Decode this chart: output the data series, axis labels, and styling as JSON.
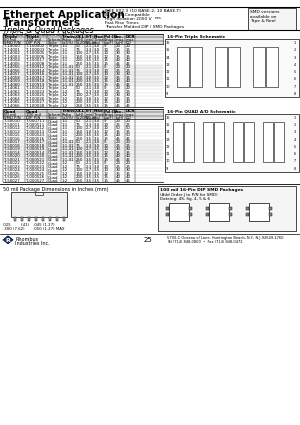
{
  "title_line1": "Ethernet Application",
  "title_line2": "Transformers",
  "title_line3": "Triple & Quad Packages",
  "specs_title": "IEEE 802.3 (10 BASE-2, 10 BASE-T)",
  "specs_line1": "& PCMIA-Compatible",
  "specs_line2": "High Isolation 2000 V",
  "specs_line2b": "rms",
  "specs_line3": "Fast Rise Times",
  "specs_line4": "Transfer Molded DIP / SMD Packages",
  "smd_box_lines": [
    "SMD versions",
    "available on",
    "Tape & Reel"
  ],
  "elec_specs_title": "Electrical Specifications at 25°C",
  "triple_headers": [
    [
      "Triple",
      "Triple",
      "",
      "Trans.",
      "OCL",
      "E-T",
      "Rise",
      "Pd (Sec.",
      "Iₗ",
      "DCR"
    ],
    [
      "50 mil",
      "100 mil",
      "Schem.",
      "Ratio",
      "(μH)",
      "min",
      "Time max.",
      "C",
      "max",
      "max"
    ],
    [
      "SMD P/N",
      "DIP P/N",
      "Style",
      "(±5%)",
      "(±20%)",
      "(V-μs)",
      "(ns)",
      "(μpF)",
      "(μH)",
      "(Ω)"
    ]
  ],
  "triple_rows": [
    [
      "T-14000",
      "T-100002",
      "Triple",
      "1:1",
      "50",
      "2.1",
      "3.0",
      "9",
      "20",
      "20"
    ],
    [
      "T-14001",
      "T-100003",
      "Triple",
      "1:1",
      "75",
      "2.3",
      "3.0",
      "10",
      "25",
      "25"
    ],
    [
      "T-14002",
      "T-100005",
      "Triple",
      "1:1",
      "100",
      "2.7",
      "3.5",
      "10",
      "30",
      "30"
    ],
    [
      "T-14003",
      "T-100006",
      "Triple",
      "1:1",
      "150",
      "3.0",
      "3.5",
      "12",
      "35",
      "35"
    ],
    [
      "T-14004",
      "T-100017",
      "Triple",
      "1:1",
      "200",
      "3.5",
      "3.5",
      "15",
      "40",
      "40"
    ],
    [
      "T-14005",
      "T-100008",
      "Triple",
      "1:1",
      "250",
      "3.5",
      "3.5",
      "15",
      "45",
      "45"
    ],
    [
      "T-14055",
      "T-100912",
      "Triple",
      "1:1.41",
      "50",
      "2.1",
      "3.0",
      "9",
      "20",
      "20"
    ],
    [
      "T-14056",
      "T-100914",
      "Triple",
      "1:1.41",
      "75",
      "2.3",
      "3.0",
      "10",
      "25",
      "25"
    ],
    [
      "T-14057",
      "T-100916",
      "Triple",
      "1:1.41",
      "100",
      "2.7",
      "3.5",
      "10",
      "30",
      "30"
    ],
    [
      "T-14058",
      "T-100917",
      "Triple",
      "1:1.41",
      "150",
      "3.0",
      "3.5",
      "12",
      "35",
      "35"
    ],
    [
      "T-14059",
      "T-100918",
      "Triple",
      "1:1.41",
      "200",
      "3.5",
      "3.5",
      "15",
      "40",
      "40"
    ],
    [
      "T-14060",
      "T-100919",
      "Triple",
      "1:1.41",
      "250",
      "3.5",
      "3.5",
      "15",
      "45",
      "45"
    ],
    [
      "T-14061",
      "T-100022",
      "Triple",
      "1:2",
      "50",
      "2.1",
      "3.0",
      "9",
      "20",
      "20"
    ],
    [
      "T-14062",
      "T-100023",
      "Triple",
      "1:2",
      "75",
      "2.3",
      "3.0",
      "10",
      "25",
      "25"
    ],
    [
      "T-14063",
      "T-100025",
      "Triple",
      "1:2",
      "100",
      "2.7",
      "3.5",
      "10",
      "30",
      "30"
    ],
    [
      "T-14064",
      "T-100026",
      "Triple",
      "1:2",
      "150",
      "3.0",
      "3.5",
      "12",
      "35",
      "35"
    ],
    [
      "T-14065",
      "T-100027",
      "Triple",
      "1:2",
      "200",
      "3.5",
      "3.5",
      "15",
      "40",
      "40"
    ],
    [
      "T-14066",
      "T-100028",
      "Triple",
      "1:2",
      "250",
      "3.5",
      "3.5",
      "15",
      "45",
      "45"
    ]
  ],
  "quad_headers": [
    [
      "Quad",
      "Quad",
      "",
      "Trans.",
      "OCL",
      "E-T",
      "Rise",
      "Pd (Sec.",
      "Iₗ",
      "DCR"
    ],
    [
      "50 mil",
      "100 mil",
      "Schem.",
      "Ratio",
      "(μH)",
      "min",
      "Time max.",
      "C",
      "max",
      "max"
    ],
    [
      "SMD P/N",
      "DIP P/N",
      "Style",
      "(±5%)",
      "(±20%)",
      "(V-μs)",
      "(ns)",
      "(μpF)",
      "(μH)",
      "(Ω)"
    ]
  ],
  "quad_rows": [
    [
      "T-50010",
      "T-000711",
      "Quad",
      "1:1",
      "50",
      "2.1",
      "3.0",
      "9",
      "20",
      "20"
    ],
    [
      "T-50011",
      "T-000511",
      "Quad",
      "1:1",
      "75",
      "2.3",
      "3.0",
      "10",
      "25",
      "25"
    ],
    [
      "T-50012",
      "T-050412",
      "Quad",
      "1:1",
      "100",
      "2.7",
      "3.0",
      "10",
      "50",
      "50"
    ],
    [
      "T-50013",
      "T-000513",
      "Quad",
      "1:1",
      "150",
      "3.0",
      "3.5",
      "12",
      "35",
      "35"
    ],
    [
      "T-50015",
      "T-000523",
      "Quad",
      "1:1",
      "200",
      "3.5",
      "3.5",
      "15",
      "40",
      "50"
    ],
    [
      "T-50016",
      "T-000516",
      "Quad",
      "1:1",
      "250",
      "3.5",
      "3.5",
      "15",
      "45",
      "45"
    ],
    [
      "T-50017",
      "T-000517",
      "Quad",
      "1:1.41",
      "50",
      "2.1",
      "3.0",
      "9",
      "20",
      "20"
    ],
    [
      "T-50018",
      "T-000518",
      "Quad",
      "1:1.41",
      "75",
      "2.3",
      "3.0",
      "10",
      "25",
      "25"
    ],
    [
      "T-50019",
      "T-000519",
      "Quad",
      "1:1.41",
      "100",
      "2.7",
      "3.5",
      "10",
      "30",
      "30"
    ],
    [
      "T-50014",
      "T-000514",
      "Quad",
      "1:1.41",
      "150",
      "3.0",
      "3.5",
      "12",
      "35",
      "35"
    ],
    [
      "T-50020",
      "T-000520",
      "Quad",
      "1:1.41",
      "200",
      "3.5",
      "3.5",
      "15",
      "40",
      "40"
    ],
    [
      "T-50021",
      "T-000521",
      "Quad",
      "1:1.41",
      "250",
      "3.5",
      "3.5",
      "15",
      "45",
      "45"
    ],
    [
      "T-50022",
      "T-000522",
      "Quad",
      "1:2",
      "50",
      "2.1",
      "3.0",
      "9",
      "20",
      "20"
    ],
    [
      "T-50023",
      "T-000523",
      "Quad",
      "1:2",
      "75",
      "2.3",
      "3.0",
      "10",
      "25",
      "25"
    ],
    [
      "T-50024",
      "T-000524",
      "Quad",
      "1:2",
      "100",
      "2.7",
      "3.5",
      "10",
      "30",
      "30"
    ],
    [
      "T-50025",
      "T-000525",
      "Quad",
      "1:2",
      "150",
      "3.0",
      "3.5",
      "12",
      "35",
      "35"
    ],
    [
      "T-50026",
      "T-000526",
      "Quad",
      "1:2",
      "200",
      "3.5",
      "3.5",
      "15",
      "40",
      "40"
    ],
    [
      "T-50027",
      "T-000527",
      "Quad",
      "1:2",
      "250",
      "3.5",
      "3.5",
      "15",
      "45",
      "45"
    ]
  ],
  "footer_note": "50 mil Package Dimensions in Inches (mm)",
  "smd_pkg_title": "100 mil 16-Pin DIP SMD Packages",
  "smd_pkg_line2": "(Add Order J to P/N for SMD)",
  "smd_pkg_line3": "Dateing: 4S, fig. 4, 5 & 6",
  "rhombus_line1": "Rhombus",
  "rhombus_line2": "Industries Inc.",
  "page_number": "25",
  "addr_line1": "5700-C Oceana of Lane, Huntington Beach, N.Y., N.J.92649-1760",
  "addr_line2": "Tel (714) 848-0800  •  Fax (714) 848-0472",
  "schematic_triple_title": "16-Pin Triple Schematic",
  "schematic_quad_title": "16-Pin QUAD A/D Schematic",
  "bg_color": "#ffffff"
}
